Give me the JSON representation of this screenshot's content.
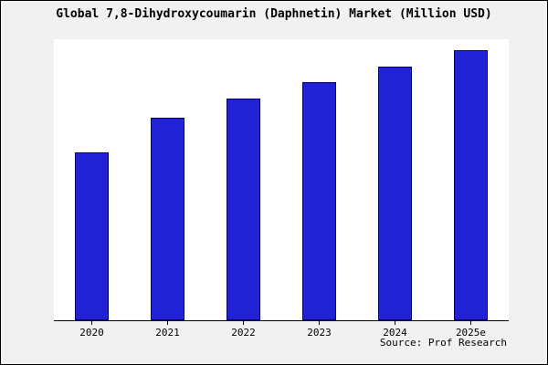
{
  "chart_data": {
    "type": "bar",
    "title": "Global 7,8-Dihydroxycoumarin (Daphnetin) Market (Million USD)",
    "categories": [
      "2020",
      "2021",
      "2022",
      "2023",
      "2024",
      "2025e"
    ],
    "values": [
      62,
      75,
      82,
      88,
      94,
      100
    ],
    "ylim": [
      0,
      104
    ],
    "xlabel": "",
    "ylabel": "",
    "grid": false,
    "legend": "none",
    "bar_fill": "#2121d6",
    "bar_border": "#00006e",
    "source": "Source: Prof Research"
  },
  "frame": {
    "background": "#f1f1f1",
    "plot_background": "#ffffff",
    "border_color": "#000000"
  }
}
